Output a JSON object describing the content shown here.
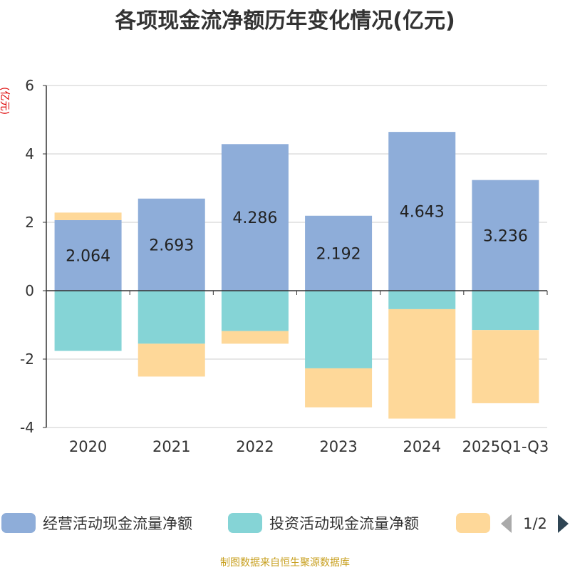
{
  "chart_data": {
    "type": "bar",
    "stacked": true,
    "title": "各项现金流净额历年变化情况(亿元)",
    "ylabel": "(亿元)",
    "xlabel": "",
    "categories": [
      "2020",
      "2021",
      "2022",
      "2023",
      "2024",
      "2025Q1-Q3"
    ],
    "ylim": [
      -4,
      6
    ],
    "yticks": [
      -4,
      -2,
      0,
      2,
      4,
      6
    ],
    "grid": true,
    "series": [
      {
        "name": "经营活动现金流量净额",
        "color": "#8eadd9",
        "values": [
          2.064,
          2.693,
          4.286,
          2.192,
          4.643,
          3.236
        ],
        "data_labels": [
          "2.064",
          "2.693",
          "4.286",
          "2.192",
          "4.643",
          "3.236"
        ]
      },
      {
        "name": "投资活动现金流量净额",
        "color": "#85d4d6",
        "values": [
          -1.76,
          -1.55,
          -1.18,
          -2.27,
          -0.54,
          -1.15
        ]
      },
      {
        "name": "",
        "color": "#fed899",
        "values": [
          0.22,
          -0.96,
          -0.37,
          -1.14,
          -3.2,
          -2.14
        ]
      }
    ],
    "legend": {
      "placement": "bottom",
      "page_indicator": "1/2"
    },
    "source": "制图数据来自恒生聚源数据库"
  }
}
